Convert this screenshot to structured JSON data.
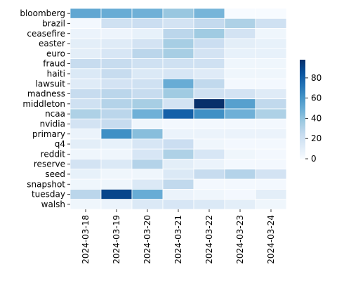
{
  "chart_data": {
    "type": "heatmap",
    "title": "",
    "xlabel": "",
    "ylabel": "",
    "x": [
      "2024-03-18",
      "2024-03-19",
      "2024-03-20",
      "2024-03-21",
      "2024-03-22",
      "2024-03-23",
      "2024-03-24"
    ],
    "y": [
      "bloomberg",
      "brazil",
      "ceasefire",
      "easter",
      "euro",
      "fraud",
      "haiti",
      "lawsuit",
      "madness",
      "middleton",
      "ncaa",
      "nvidia",
      "primary",
      "q4",
      "reddit",
      "reserve",
      "seed",
      "snapshot",
      "tuesday",
      "walsh"
    ],
    "values": [
      [
        52,
        50,
        48,
        38,
        46,
        0,
        0
      ],
      [
        2,
        20,
        22,
        18,
        25,
        32,
        20
      ],
      [
        6,
        5,
        8,
        28,
        36,
        18,
        4
      ],
      [
        10,
        12,
        18,
        34,
        22,
        10,
        8
      ],
      [
        10,
        16,
        28,
        34,
        18,
        8,
        8
      ],
      [
        24,
        24,
        20,
        20,
        20,
        4,
        4
      ],
      [
        14,
        24,
        14,
        16,
        12,
        4,
        4
      ],
      [
        12,
        18,
        20,
        50,
        26,
        2,
        2
      ],
      [
        24,
        28,
        24,
        36,
        20,
        18,
        12
      ],
      [
        20,
        30,
        34,
        18,
        98,
        55,
        26
      ],
      [
        32,
        28,
        48,
        80,
        62,
        48,
        32
      ],
      [
        18,
        24,
        4,
        2,
        2,
        2,
        2
      ],
      [
        6,
        62,
        42,
        6,
        6,
        6,
        6
      ],
      [
        10,
        8,
        16,
        22,
        4,
        2,
        2
      ],
      [
        4,
        4,
        16,
        32,
        16,
        4,
        2
      ],
      [
        18,
        14,
        30,
        10,
        6,
        2,
        2
      ],
      [
        8,
        4,
        4,
        14,
        24,
        30,
        18
      ],
      [
        4,
        4,
        14,
        26,
        2,
        2,
        2
      ],
      [
        28,
        90,
        50,
        6,
        4,
        2,
        10
      ],
      [
        4,
        6,
        14,
        16,
        14,
        10,
        4
      ]
    ],
    "colorbar": {
      "min": 0,
      "max": 98,
      "ticks": [
        0,
        20,
        40,
        60,
        80
      ]
    },
    "colormap": "Blues",
    "colormap_stops": [
      "#f7fbff",
      "#deebf7",
      "#c6dbef",
      "#9ecae1",
      "#6baed6",
      "#4292c6",
      "#2171b5",
      "#08519c",
      "#08306b"
    ],
    "cell_border_color": "#ffffff"
  }
}
